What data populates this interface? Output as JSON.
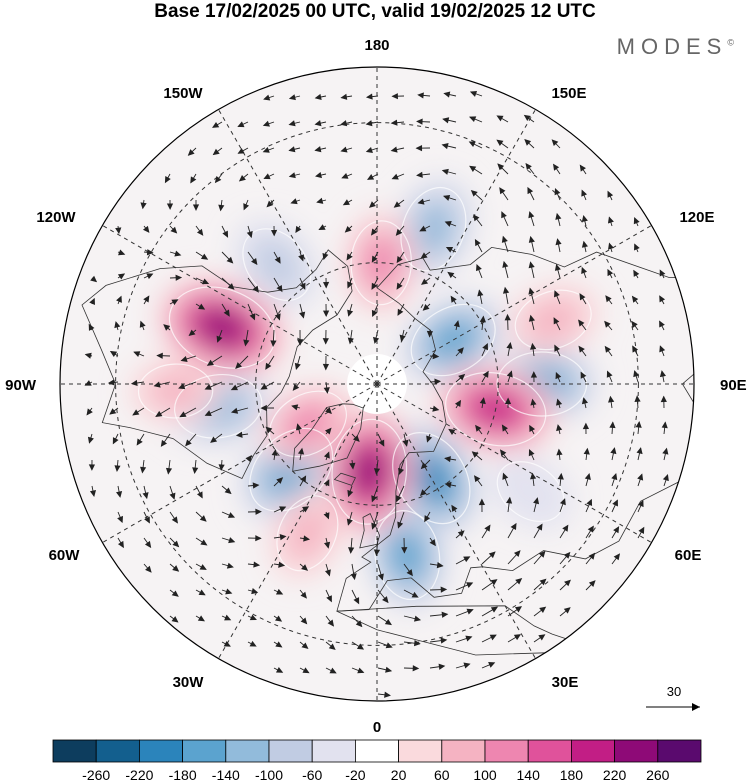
{
  "header": {
    "title": "Base 17/02/2025 00 UTC, valid 19/02/2025 12 UTC",
    "brand": "MODES",
    "brand_mark": "©"
  },
  "map": {
    "projection": "north-polar-stereographic",
    "longitude_labels": [
      "180",
      "150E",
      "120E",
      "90E",
      "60E",
      "30E",
      "0",
      "30W",
      "60W",
      "90W",
      "120W",
      "150W"
    ]
  },
  "reference_vector": {
    "value": "30"
  },
  "colors": {
    "neg_strong": "#0d3d5e",
    "neg_light": "#e2e2ef",
    "pos_light": "#fadadd",
    "pos_strong": "#5a0a6e",
    "vector_arrows": "#222222",
    "coastline": "#333333"
  },
  "anomalies": [
    {
      "lon": 30,
      "lat": 63,
      "value": -190
    },
    {
      "lon": 120,
      "lat": 68,
      "value": -150
    },
    {
      "lon": 90,
      "lat": 50,
      "value": -150
    },
    {
      "lon": 160,
      "lat": 50,
      "value": -130
    },
    {
      "lon": -140,
      "lat": 52,
      "value": -100
    },
    {
      "lon": -82,
      "lat": 51,
      "value": -140
    },
    {
      "lon": -45,
      "lat": 60,
      "value": -180
    },
    {
      "lon": 10,
      "lat": 48,
      "value": -150
    },
    {
      "lon": 55,
      "lat": 45,
      "value": -60
    },
    {
      "lon": -110,
      "lat": 50,
      "value": 250
    },
    {
      "lon": 78,
      "lat": 60,
      "value": 210
    },
    {
      "lon": -5,
      "lat": 68,
      "value": 230
    },
    {
      "lon": -60,
      "lat": 70,
      "value": 110
    },
    {
      "lon": -25,
      "lat": 50,
      "value": 90
    },
    {
      "lon": 178,
      "lat": 60,
      "value": 120
    },
    {
      "lon": 110,
      "lat": 45,
      "value": 90
    },
    {
      "lon": -88,
      "lat": 42,
      "value": 70
    }
  ],
  "colorbar": {
    "ticks": [
      "-260",
      "-220",
      "-180",
      "-140",
      "-100",
      "-60",
      "-20",
      "20",
      "60",
      "100",
      "140",
      "180",
      "220",
      "260"
    ],
    "colors": [
      "#0d3d5e",
      "#135f8e",
      "#2b84bb",
      "#5ba3cf",
      "#92bbdb",
      "#c1cce3",
      "#e2e2ef",
      "#ffffff",
      "#fadadd",
      "#f5b3c2",
      "#ee86b0",
      "#e0529b",
      "#c21e85",
      "#8e0a77",
      "#5a0a6e"
    ]
  }
}
